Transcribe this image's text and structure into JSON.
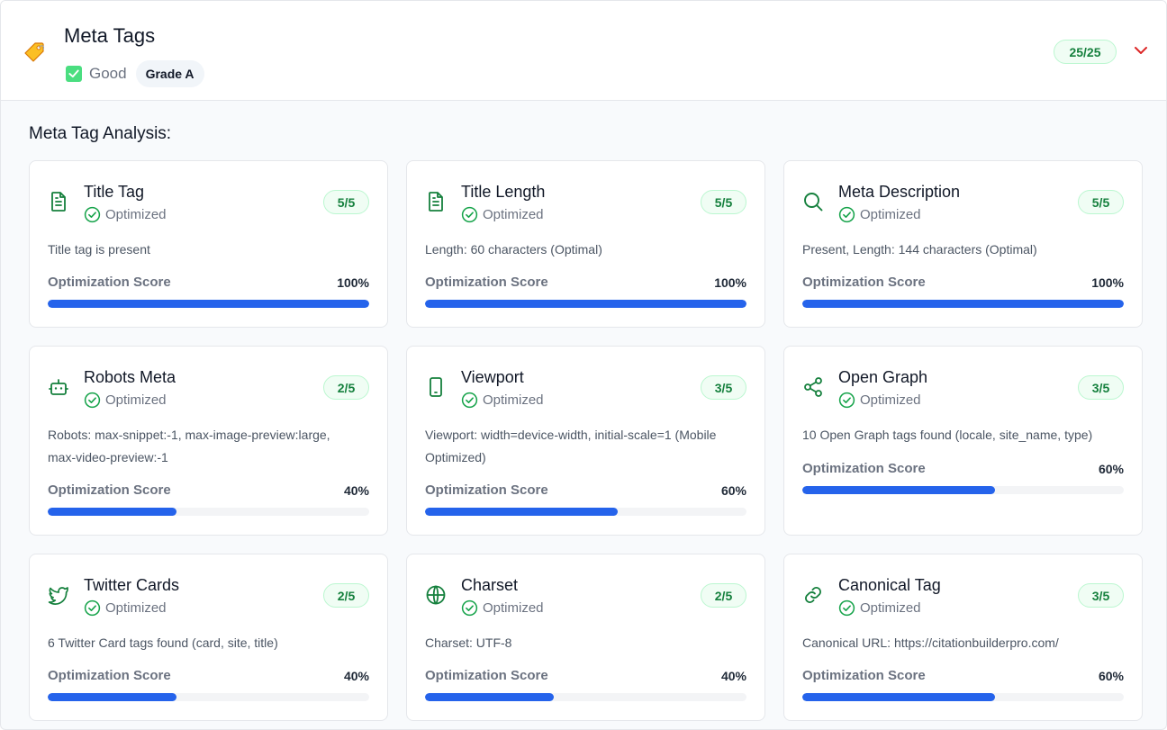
{
  "header": {
    "title": "Meta Tags",
    "status": "Good",
    "grade": "Grade A",
    "score": "25/25",
    "icon": "tag-icon",
    "toggle_icon": "chevron-down-icon"
  },
  "section_title": "Meta Tag Analysis:",
  "colors": {
    "green": "#15803d",
    "accent": "#2563eb",
    "chevron": "#dc2626"
  },
  "cards": [
    {
      "title": "Title Tag",
      "status": "Optimized",
      "score": "5/5",
      "icon": "file-text-icon",
      "description": "Title tag is present",
      "score_label": "Optimization Score",
      "percent_text": "100%",
      "percent": 100
    },
    {
      "title": "Title Length",
      "status": "Optimized",
      "score": "5/5",
      "icon": "file-text-icon",
      "description": "Length: 60 characters (Optimal)",
      "score_label": "Optimization Score",
      "percent_text": "100%",
      "percent": 100
    },
    {
      "title": "Meta Description",
      "status": "Optimized",
      "score": "5/5",
      "icon": "search-icon",
      "description": "Present, Length: 144 characters (Optimal)",
      "score_label": "Optimization Score",
      "percent_text": "100%",
      "percent": 100
    },
    {
      "title": "Robots Meta",
      "status": "Optimized",
      "score": "2/5",
      "icon": "bot-icon",
      "description": "Robots: max-snippet:-1, max-image-preview:large, max-video-preview:-1",
      "score_label": "Optimization Score",
      "percent_text": "40%",
      "percent": 40
    },
    {
      "title": "Viewport",
      "status": "Optimized",
      "score": "3/5",
      "icon": "smartphone-icon",
      "description": "Viewport: width=device-width, initial-scale=1 (Mobile Optimized)",
      "score_label": "Optimization Score",
      "percent_text": "60%",
      "percent": 60
    },
    {
      "title": "Open Graph",
      "status": "Optimized",
      "score": "3/5",
      "icon": "share-icon",
      "description": "10 Open Graph tags found (locale, site_name, type)",
      "score_label": "Optimization Score",
      "percent_text": "60%",
      "percent": 60
    },
    {
      "title": "Twitter Cards",
      "status": "Optimized",
      "score": "2/5",
      "icon": "twitter-icon",
      "description": "6 Twitter Card tags found (card, site, title)",
      "score_label": "Optimization Score",
      "percent_text": "40%",
      "percent": 40
    },
    {
      "title": "Charset",
      "status": "Optimized",
      "score": "2/5",
      "icon": "globe-icon",
      "description": "Charset: UTF-8",
      "score_label": "Optimization Score",
      "percent_text": "40%",
      "percent": 40
    },
    {
      "title": "Canonical Tag",
      "status": "Optimized",
      "score": "3/5",
      "icon": "link-icon",
      "description": "Canonical URL: https://citationbuilderpro.com/",
      "score_label": "Optimization Score",
      "percent_text": "60%",
      "percent": 60
    }
  ]
}
